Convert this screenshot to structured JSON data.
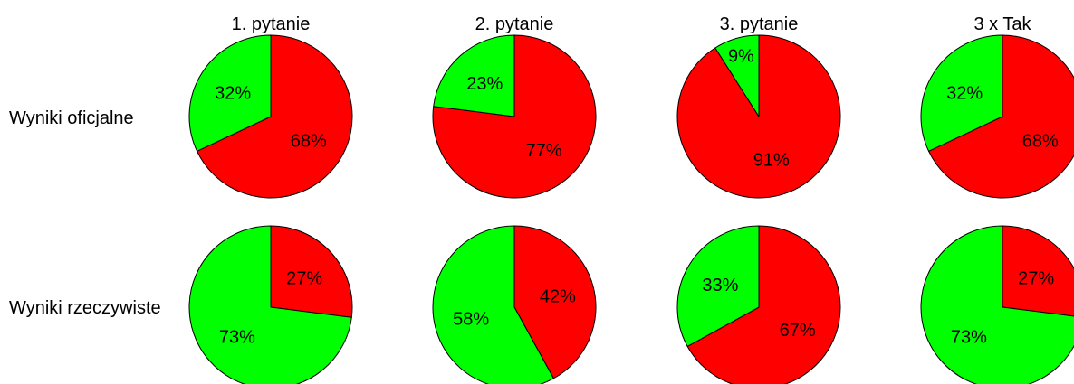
{
  "chart_data": {
    "type": "pie",
    "column_titles": [
      "1. pytanie",
      "2. pytanie",
      "3. pytanie",
      "3 x Tak"
    ],
    "row_labels": [
      "Wyniki oficjalne",
      "Wyniki rzeczywiste"
    ],
    "colors": {
      "yes": "#00ff00",
      "no": "#ff0000",
      "outline": "#000000"
    },
    "pies": [
      [
        {
          "slices": [
            {
              "value": 68,
              "label": "68%",
              "color": "no"
            },
            {
              "value": 32,
              "label": "32%",
              "color": "yes"
            }
          ]
        },
        {
          "slices": [
            {
              "value": 77,
              "label": "77%",
              "color": "no"
            },
            {
              "value": 23,
              "label": "23%",
              "color": "yes"
            }
          ]
        },
        {
          "slices": [
            {
              "value": 91,
              "label": "91%",
              "color": "no"
            },
            {
              "value": 9,
              "label": "9%",
              "color": "yes"
            }
          ]
        },
        {
          "slices": [
            {
              "value": 68,
              "label": "68%",
              "color": "no"
            },
            {
              "value": 32,
              "label": "32%",
              "color": "yes"
            }
          ]
        }
      ],
      [
        {
          "slices": [
            {
              "value": 27,
              "label": "27%",
              "color": "no"
            },
            {
              "value": 73,
              "label": "73%",
              "color": "yes"
            }
          ]
        },
        {
          "slices": [
            {
              "value": 42,
              "label": "42%",
              "color": "no"
            },
            {
              "value": 58,
              "label": "58%",
              "color": "yes"
            }
          ]
        },
        {
          "slices": [
            {
              "value": 67,
              "label": "67%",
              "color": "no"
            },
            {
              "value": 33,
              "label": "33%",
              "color": "yes"
            }
          ]
        },
        {
          "slices": [
            {
              "value": 27,
              "label": "27%",
              "color": "no"
            },
            {
              "value": 73,
              "label": "73%",
              "color": "yes"
            }
          ]
        }
      ]
    ]
  }
}
